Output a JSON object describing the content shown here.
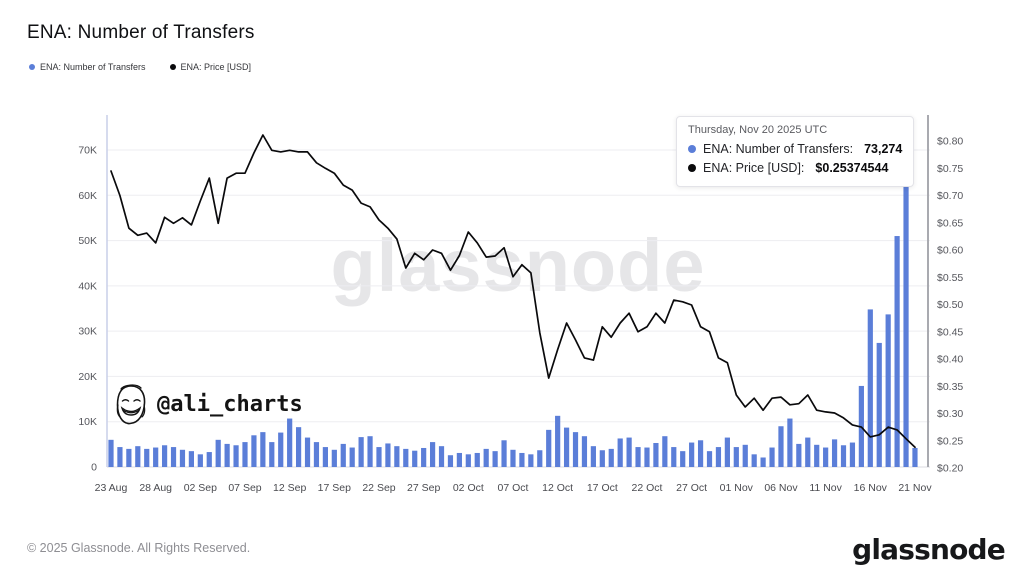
{
  "page": {
    "title": "ENA: Number of Transfers",
    "watermark": "glassnode",
    "artist_credit": "@ali_charts",
    "footer_left": "© 2025 Glassnode. All Rights Reserved.",
    "footer_logo": "glassnode"
  },
  "legend": [
    {
      "label": "ENA: Number of Transfers",
      "color": "#5b7ed8"
    },
    {
      "label": "ENA: Price [USD]",
      "color": "#0a0a0c"
    }
  ],
  "tooltip": {
    "date": "Thursday, Nov 20 2025 UTC",
    "rows": [
      {
        "label": "ENA: Number of Transfers:",
        "value": "73,274",
        "color": "#5b7ed8"
      },
      {
        "label": "ENA: Price [USD]:",
        "value": "$0.25374544",
        "color": "#0a0a0c"
      }
    ]
  },
  "chart_data": {
    "type": "bar+line",
    "title": "ENA: Number of Transfers",
    "grid": "horizontal",
    "legend_position": "top-left",
    "x_start": "2025-08-23",
    "x_end": "2025-11-21",
    "x_interval": "1 day",
    "x": [
      "08-23",
      "08-24",
      "08-25",
      "08-26",
      "08-27",
      "08-28",
      "08-29",
      "08-30",
      "08-31",
      "09-01",
      "09-02",
      "09-03",
      "09-04",
      "09-05",
      "09-06",
      "09-07",
      "09-08",
      "09-09",
      "09-10",
      "09-11",
      "09-12",
      "09-13",
      "09-14",
      "09-15",
      "09-16",
      "09-17",
      "09-18",
      "09-19",
      "09-20",
      "09-21",
      "09-22",
      "09-23",
      "09-24",
      "09-25",
      "09-26",
      "09-27",
      "09-28",
      "09-29",
      "09-30",
      "10-01",
      "10-02",
      "10-03",
      "10-04",
      "10-05",
      "10-06",
      "10-07",
      "10-08",
      "10-09",
      "10-10",
      "10-11",
      "10-12",
      "10-13",
      "10-14",
      "10-15",
      "10-16",
      "10-17",
      "10-18",
      "10-19",
      "10-20",
      "10-21",
      "10-22",
      "10-23",
      "10-24",
      "10-25",
      "10-26",
      "10-27",
      "10-28",
      "10-29",
      "10-30",
      "10-31",
      "11-01",
      "11-02",
      "11-03",
      "11-04",
      "11-05",
      "11-06",
      "11-07",
      "11-08",
      "11-09",
      "11-10",
      "11-11",
      "11-12",
      "11-13",
      "11-14",
      "11-15",
      "11-16",
      "11-17",
      "11-18",
      "11-19",
      "11-20",
      "11-21"
    ],
    "x_ticks": {
      "labels": [
        "23 Aug",
        "28 Aug",
        "02 Sep",
        "07 Sep",
        "12 Sep",
        "17 Sep",
        "22 Sep",
        "27 Sep",
        "02 Oct",
        "07 Oct",
        "12 Oct",
        "17 Oct",
        "22 Oct",
        "27 Oct",
        "01 Nov",
        "06 Nov",
        "11 Nov",
        "16 Nov",
        "21 Nov"
      ],
      "day_indices": [
        0,
        5,
        10,
        15,
        20,
        25,
        30,
        35,
        40,
        45,
        50,
        55,
        60,
        65,
        70,
        75,
        80,
        85,
        90
      ]
    },
    "y_left": {
      "axis_label": "Number of Transfers",
      "ticks": [
        0,
        10000,
        20000,
        30000,
        40000,
        50000,
        60000,
        70000
      ],
      "labels": [
        "0",
        "10K",
        "20K",
        "30K",
        "40K",
        "50K",
        "60K",
        "70K"
      ],
      "range": [
        0,
        77700
      ]
    },
    "y_right": {
      "axis_label": "Price [USD]",
      "ticks": [
        0.2,
        0.25,
        0.3,
        0.35,
        0.4,
        0.45,
        0.5,
        0.55,
        0.6,
        0.65,
        0.7,
        0.75,
        0.8
      ],
      "labels": [
        "$0.20",
        "$0.25",
        "$0.30",
        "$0.35",
        "$0.40",
        "$0.45",
        "$0.50",
        "$0.55",
        "$0.60",
        "$0.65",
        "$0.70",
        "$0.75",
        "$0.80"
      ],
      "range": [
        0.2,
        0.848
      ]
    },
    "series": [
      {
        "name": "ENA: Number of Transfers",
        "type": "bar",
        "axis": "left",
        "color": "#5b7ed8",
        "values": [
          6000,
          4400,
          4000,
          4600,
          4000,
          4300,
          4800,
          4400,
          3800,
          3500,
          2800,
          3300,
          6000,
          5100,
          4800,
          5500,
          7000,
          7700,
          5500,
          7600,
          10700,
          8800,
          6500,
          5500,
          4400,
          3800,
          5100,
          4300,
          6600,
          6800,
          4400,
          5200,
          4600,
          4000,
          3600,
          4200,
          5500,
          4600,
          2600,
          3100,
          2800,
          3100,
          4000,
          3500,
          5900,
          3800,
          3100,
          2800,
          3700,
          8200,
          11300,
          8700,
          7700,
          6800,
          4600,
          3700,
          4000,
          6300,
          6500,
          4400,
          4300,
          5300,
          6800,
          4400,
          3500,
          5400,
          5900,
          3500,
          4400,
          6500,
          4400,
          4900,
          2800,
          2100,
          4300,
          9000,
          10700,
          5100,
          6500,
          4900,
          4300,
          6100,
          4800,
          5400,
          17900,
          34800,
          27400,
          33700,
          51000,
          73274,
          4200
        ]
      },
      {
        "name": "ENA: Price [USD]",
        "type": "line",
        "axis": "right",
        "color": "#0a0a0c",
        "values": [
          0.745,
          0.7,
          0.64,
          0.627,
          0.631,
          0.613,
          0.66,
          0.649,
          0.659,
          0.646,
          0.69,
          0.732,
          0.649,
          0.732,
          0.741,
          0.741,
          0.778,
          0.811,
          0.783,
          0.78,
          0.783,
          0.78,
          0.78,
          0.76,
          0.75,
          0.741,
          0.719,
          0.71,
          0.686,
          0.679,
          0.655,
          0.64,
          0.62,
          0.567,
          0.594,
          0.582,
          0.6,
          0.594,
          0.563,
          0.59,
          0.633,
          0.613,
          0.587,
          0.589,
          0.604,
          0.551,
          0.573,
          0.558,
          0.448,
          0.365,
          0.417,
          0.466,
          0.435,
          0.402,
          0.398,
          0.459,
          0.44,
          0.466,
          0.484,
          0.45,
          0.459,
          0.484,
          0.466,
          0.508,
          0.505,
          0.499,
          0.459,
          0.45,
          0.402,
          0.393,
          0.334,
          0.312,
          0.328,
          0.306,
          0.328,
          0.33,
          0.316,
          0.318,
          0.334,
          0.306,
          0.303,
          0.301,
          0.292,
          0.279,
          0.275,
          0.257,
          0.261,
          0.275,
          0.27,
          0.25374544,
          0.238
        ]
      }
    ]
  }
}
